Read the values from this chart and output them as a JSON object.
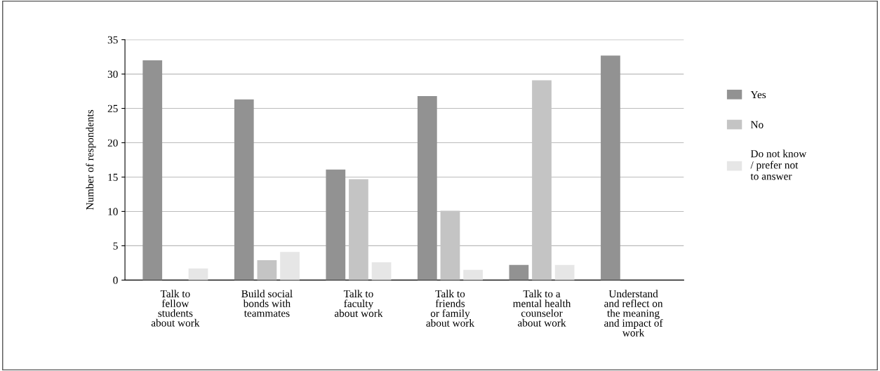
{
  "chart_data": {
    "type": "bar",
    "ylabel": "Number of respondents",
    "categories": [
      "Talk to\nfellow\nstudents\nabout work",
      "Build social\nbonds with\nteammates",
      "Talk to\nfaculty\nabout work",
      "Talk to\nfriends\nor family\nabout work",
      "Talk to a\nmental health\ncounselor\nabout work",
      "Understand\nand reflect on\nthe meaning\nand impact of\nwork"
    ],
    "series": [
      {
        "name": "Yes",
        "color": "#929292",
        "values": [
          32,
          26.3,
          16.1,
          26.8,
          2.2,
          32.7
        ]
      },
      {
        "name": "No",
        "color": "#c4c4c4",
        "values": [
          0,
          2.9,
          14.7,
          10.1,
          29.1,
          0
        ]
      },
      {
        "name": "Do not know\n/ prefer not\nto answer",
        "color": "#e6e6e6",
        "values": [
          1.7,
          4.1,
          2.6,
          1.5,
          2.2,
          0
        ]
      }
    ],
    "ylim": [
      0,
      35
    ],
    "yticks": [
      0,
      5,
      10,
      15,
      20,
      25,
      30,
      35
    ],
    "grid": "y",
    "legend": "right"
  }
}
